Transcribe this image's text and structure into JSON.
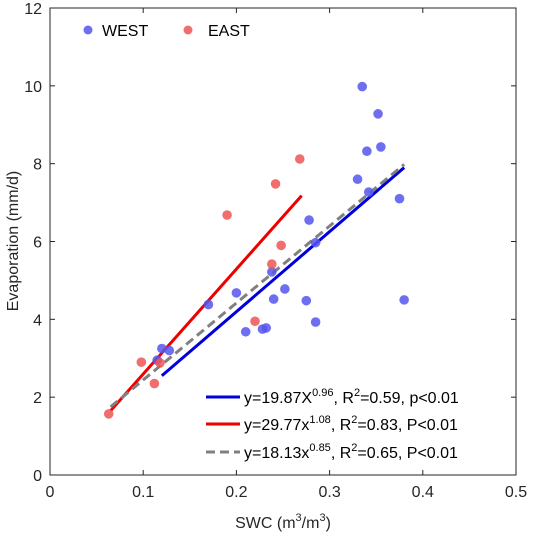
{
  "chart_data": {
    "type": "scatter",
    "xlabel": "SWC",
    "xlabel_unit": "(m",
    "xlabel_unit_exp": "3",
    "xlabel_unit_mid": "/m",
    "xlabel_unit_exp2": "3",
    "xlabel_unit_end": ")",
    "ylabel": "Evaporation (mm/d)",
    "xlim": [
      0,
      0.5
    ],
    "ylim": [
      0,
      12
    ],
    "xticks": [
      0,
      0.1,
      0.2,
      0.3,
      0.4,
      0.5
    ],
    "xtick_labels": [
      "0",
      "0.1",
      "0.2",
      "0.3",
      "0.4",
      "0.5"
    ],
    "yticks": [
      0,
      2,
      4,
      6,
      8,
      10,
      12
    ],
    "ytick_labels": [
      "0",
      "2",
      "4",
      "6",
      "8",
      "10",
      "12"
    ],
    "grid": false,
    "legend_placement": "top-left",
    "series": [
      {
        "name": "WEST",
        "color": "#5555ee",
        "points": [
          [
            0.115,
            2.95
          ],
          [
            0.12,
            3.25
          ],
          [
            0.128,
            3.2
          ],
          [
            0.17,
            4.38
          ],
          [
            0.2,
            4.68
          ],
          [
            0.21,
            3.68
          ],
          [
            0.228,
            3.75
          ],
          [
            0.232,
            3.78
          ],
          [
            0.238,
            5.22
          ],
          [
            0.24,
            4.52
          ],
          [
            0.252,
            4.78
          ],
          [
            0.275,
            4.48
          ],
          [
            0.278,
            6.55
          ],
          [
            0.285,
            5.97
          ],
          [
            0.285,
            3.93
          ],
          [
            0.33,
            7.6
          ],
          [
            0.335,
            9.98
          ],
          [
            0.34,
            8.32
          ],
          [
            0.342,
            7.27
          ],
          [
            0.352,
            9.28
          ],
          [
            0.355,
            8.43
          ],
          [
            0.375,
            7.1
          ],
          [
            0.38,
            4.5
          ]
        ]
      },
      {
        "name": "EAST",
        "color": "#ee5555",
        "points": [
          [
            0.063,
            1.57
          ],
          [
            0.098,
            2.9
          ],
          [
            0.112,
            2.35
          ],
          [
            0.118,
            2.88
          ],
          [
            0.19,
            6.68
          ],
          [
            0.22,
            3.95
          ],
          [
            0.238,
            5.42
          ],
          [
            0.242,
            7.48
          ],
          [
            0.248,
            5.9
          ],
          [
            0.268,
            8.12
          ]
        ]
      }
    ],
    "fits": [
      {
        "color": "#0000dd",
        "dash": "solid",
        "x": [
          0.12,
          0.38
        ],
        "y": [
          2.55,
          7.9
        ],
        "label_pre": "y=19.87X",
        "label_exp": "0.96",
        "label_mid": ", R",
        "label_exp2": "2",
        "label_post": "=0.59, p<0.01"
      },
      {
        "color": "#ee0000",
        "dash": "solid",
        "x": [
          0.065,
          0.27
        ],
        "y": [
          1.65,
          7.18
        ],
        "label_pre": "y=29.77x",
        "label_exp": "1.08",
        "label_mid": ", R",
        "label_exp2": "2",
        "label_post": "=0.83, P<0.01"
      },
      {
        "color": "#808080",
        "dash": "dashed",
        "x": [
          0.065,
          0.38
        ],
        "y": [
          1.75,
          7.98
        ],
        "label_pre": "y=18.13x",
        "label_exp": "0.85",
        "label_mid": ", R",
        "label_exp2": "2",
        "label_post": "=0.65, P<0.01"
      }
    ]
  }
}
